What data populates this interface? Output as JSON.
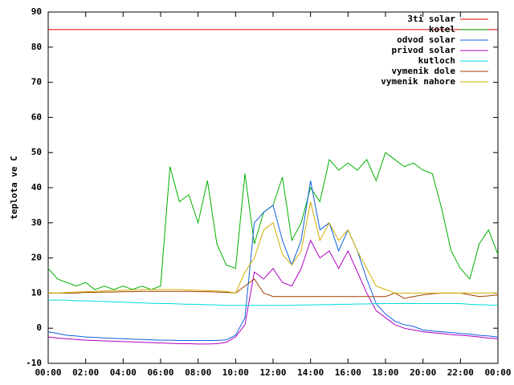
{
  "chart_data": {
    "type": "line",
    "ylabel": "teplota ve C",
    "xlim": [
      0,
      24
    ],
    "xticks": [
      {
        "value": 0,
        "label": "00:00"
      },
      {
        "value": 2,
        "label": "02:00"
      },
      {
        "value": 4,
        "label": "04:00"
      },
      {
        "value": 6,
        "label": "06:00"
      },
      {
        "value": 8,
        "label": "08:00"
      },
      {
        "value": 10,
        "label": "10:00"
      },
      {
        "value": 12,
        "label": "12:00"
      },
      {
        "value": 14,
        "label": "14:00"
      },
      {
        "value": 16,
        "label": "16:00"
      },
      {
        "value": 18,
        "label": "18:00"
      },
      {
        "value": 20,
        "label": "20:00"
      },
      {
        "value": 22,
        "label": "22:00"
      },
      {
        "value": 24,
        "label": "00:00"
      }
    ],
    "ylim": [
      -10,
      90
    ],
    "yticks": [
      -10,
      0,
      10,
      20,
      30,
      40,
      50,
      60,
      70,
      80,
      90
    ],
    "legend": "top-right",
    "x": [
      0,
      0.5,
      1,
      1.5,
      2,
      2.5,
      3,
      3.5,
      4,
      4.5,
      5,
      5.5,
      6,
      6.5,
      7,
      7.5,
      8,
      8.5,
      9,
      9.5,
      10,
      10.5,
      11,
      11.5,
      12,
      12.5,
      13,
      13.5,
      14,
      14.5,
      15,
      15.5,
      16,
      16.5,
      17,
      17.5,
      18,
      18.5,
      19,
      19.5,
      20,
      20.5,
      21,
      21.5,
      22,
      22.5,
      23,
      23.5,
      24
    ],
    "series": [
      {
        "name": "3ti solar",
        "color": "#e00000",
        "values": [
          85,
          85,
          85,
          85,
          85,
          85,
          85,
          85,
          85,
          85,
          85,
          85,
          85,
          85,
          85,
          85,
          85,
          85,
          85,
          85,
          85,
          85,
          85,
          85,
          85,
          85,
          85,
          85,
          85,
          85,
          85,
          85,
          85,
          85,
          85,
          85,
          85,
          85,
          85,
          85,
          85,
          85,
          85,
          85,
          85,
          85,
          85,
          85,
          85
        ]
      },
      {
        "name": "kotel",
        "color": "#00b000",
        "values": [
          17,
          14,
          13,
          12,
          13,
          11,
          12,
          11,
          12,
          11,
          12,
          11,
          12,
          46,
          36,
          38,
          30,
          42,
          24,
          18,
          17,
          44,
          24,
          33,
          35,
          43,
          25,
          30,
          40,
          36,
          48,
          45,
          47,
          45,
          48,
          42,
          50,
          48,
          46,
          47,
          45,
          44,
          34,
          22,
          17,
          14,
          24,
          28,
          21
        ]
      },
      {
        "name": "odvod solar",
        "color": "#1060e0",
        "values": [
          -1,
          -1.5,
          -2,
          -2.2,
          -2.5,
          -2.6,
          -2.8,
          -2.9,
          -3,
          -3.1,
          -3.2,
          -3.3,
          -3.4,
          -3.4,
          -3.5,
          -3.5,
          -3.5,
          -3.5,
          -3.5,
          -3.3,
          -2,
          3,
          30,
          33,
          35,
          25,
          18,
          25,
          42,
          28,
          30,
          22,
          28,
          22,
          14,
          7,
          4,
          2,
          1,
          0.5,
          -0.5,
          -0.8,
          -1,
          -1.2,
          -1.5,
          -1.7,
          -2,
          -2.2,
          -2.5
        ]
      },
      {
        "name": "privod solar",
        "color": "#b000c0",
        "values": [
          -2.5,
          -2.8,
          -3,
          -3.2,
          -3.4,
          -3.5,
          -3.6,
          -3.7,
          -3.8,
          -3.9,
          -4,
          -4.1,
          -4.2,
          -4.3,
          -4.4,
          -4.4,
          -4.5,
          -4.5,
          -4.4,
          -4,
          -2.5,
          1,
          16,
          14,
          17,
          13,
          12,
          17,
          25,
          20,
          22,
          17,
          22,
          16,
          10,
          5,
          3,
          1,
          0,
          -0.5,
          -1,
          -1.3,
          -1.5,
          -1.8,
          -2,
          -2.2,
          -2.5,
          -2.8,
          -3
        ]
      },
      {
        "name": "kutloch",
        "color": "#00d8d8",
        "values": [
          8,
          8,
          8,
          7.8,
          7.8,
          7.7,
          7.6,
          7.5,
          7.4,
          7.3,
          7.2,
          7.1,
          7,
          7,
          6.9,
          6.8,
          6.8,
          6.7,
          6.6,
          6.5,
          6.5,
          6.5,
          6.5,
          6.5,
          6.5,
          6.5,
          6.5,
          6.6,
          6.6,
          6.7,
          6.7,
          6.8,
          6.8,
          6.9,
          6.9,
          7,
          7,
          7,
          7,
          7,
          7,
          7,
          7,
          7,
          7,
          6.8,
          6.7,
          6.6,
          6.5
        ]
      },
      {
        "name": "vymenik dole",
        "color": "#a04000",
        "values": [
          10,
          10,
          10,
          10,
          10.2,
          10.2,
          10.3,
          10.3,
          10.4,
          10.4,
          10.5,
          10.5,
          10.5,
          10.5,
          10.5,
          10.5,
          10.4,
          10.4,
          10.3,
          10.2,
          10,
          12,
          14,
          10,
          9,
          9,
          9,
          9,
          9,
          9,
          9,
          9,
          9,
          9,
          9,
          9,
          9,
          10,
          8.5,
          9,
          9.5,
          9.8,
          10,
          10,
          10,
          9.5,
          9,
          9.2,
          9.5
        ]
      },
      {
        "name": "vymenik nahore",
        "color": "#d0b000",
        "values": [
          10,
          10,
          10.2,
          10.3,
          10.4,
          10.5,
          10.6,
          10.7,
          10.8,
          10.9,
          11,
          11,
          11,
          11,
          11,
          10.9,
          10.8,
          10.7,
          10.6,
          10.5,
          10,
          16,
          20,
          28,
          30,
          21,
          18,
          22,
          36,
          25,
          30,
          25,
          28,
          22,
          17,
          12,
          11,
          10,
          10,
          10,
          10,
          10,
          10,
          10,
          10,
          10,
          10,
          10,
          10
        ]
      }
    ]
  }
}
